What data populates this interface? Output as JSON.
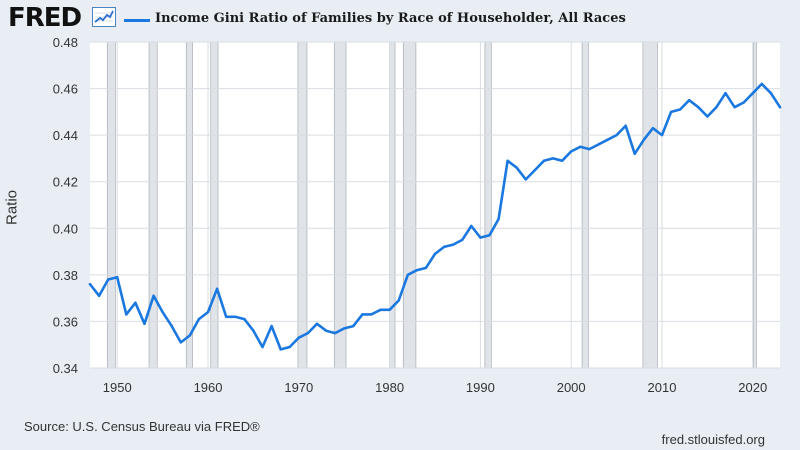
{
  "header": {
    "logo_text": "FRED",
    "logo_icon": "chart-line-icon",
    "title": "Income Gini Ratio of Families by Race of Householder, All Races"
  },
  "footer": {
    "source": "Source: U.S. Census Bureau via FRED®",
    "site": "fred.stlouisfed.org"
  },
  "colors": {
    "line": "#1a78e0",
    "plot_bg": "#ffffff",
    "page_bg": "#e9eef5",
    "recession": "#e0e3e7",
    "recession_stroke": "#9ca4ad",
    "grid": "#d9dde3"
  },
  "chart_data": {
    "type": "line",
    "title": "Income Gini Ratio of Families by Race of Householder, All Races",
    "xlabel": "",
    "ylabel": "Ratio",
    "xlim": [
      1947,
      2023
    ],
    "ylim": [
      0.34,
      0.48
    ],
    "xticks": [
      1950,
      1960,
      1970,
      1980,
      1990,
      2000,
      2010,
      2020
    ],
    "yticks": [
      0.34,
      0.36,
      0.38,
      0.4,
      0.42,
      0.44,
      0.46,
      0.48
    ],
    "ytick_labels": [
      "0.34",
      "0.36",
      "0.38",
      "0.40",
      "0.42",
      "0.44",
      "0.46",
      "0.48"
    ],
    "grid": true,
    "legend": "top-left",
    "recessions": [
      [
        1948.9,
        1949.8
      ],
      [
        1953.5,
        1954.4
      ],
      [
        1957.6,
        1958.3
      ],
      [
        1960.3,
        1961.1
      ],
      [
        1969.9,
        1970.9
      ],
      [
        1973.9,
        1975.2
      ],
      [
        1980.0,
        1980.6
      ],
      [
        1981.5,
        1982.9
      ],
      [
        1990.5,
        1991.2
      ],
      [
        2001.2,
        2001.9
      ],
      [
        2007.9,
        2009.5
      ],
      [
        2020.1,
        2020.4
      ]
    ],
    "series": [
      {
        "name": "Income Gini Ratio of Families by Race of Householder, All Races",
        "x": [
          1947,
          1948,
          1949,
          1950,
          1951,
          1952,
          1953,
          1954,
          1955,
          1956,
          1957,
          1958,
          1959,
          1960,
          1961,
          1962,
          1963,
          1964,
          1965,
          1966,
          1967,
          1968,
          1969,
          1970,
          1971,
          1972,
          1973,
          1974,
          1975,
          1976,
          1977,
          1978,
          1979,
          1980,
          1981,
          1982,
          1983,
          1984,
          1985,
          1986,
          1987,
          1988,
          1989,
          1990,
          1991,
          1992,
          1993,
          1994,
          1995,
          1996,
          1997,
          1998,
          1999,
          2000,
          2001,
          2002,
          2003,
          2004,
          2005,
          2006,
          2007,
          2008,
          2009,
          2010,
          2011,
          2012,
          2013,
          2014,
          2015,
          2016,
          2017,
          2018,
          2019,
          2020,
          2021,
          2022,
          2023
        ],
        "y": [
          0.376,
          0.371,
          0.378,
          0.379,
          0.363,
          0.368,
          0.359,
          0.371,
          0.364,
          0.358,
          0.351,
          0.354,
          0.361,
          0.364,
          0.374,
          0.362,
          0.362,
          0.361,
          0.356,
          0.349,
          0.358,
          0.348,
          0.349,
          0.353,
          0.355,
          0.359,
          0.356,
          0.355,
          0.357,
          0.358,
          0.363,
          0.363,
          0.365,
          0.365,
          0.369,
          0.38,
          0.382,
          0.383,
          0.389,
          0.392,
          0.393,
          0.395,
          0.401,
          0.396,
          0.397,
          0.404,
          0.429,
          0.426,
          0.421,
          0.425,
          0.429,
          0.43,
          0.429,
          0.433,
          0.435,
          0.434,
          0.436,
          0.438,
          0.44,
          0.444,
          0.432,
          0.438,
          0.443,
          0.44,
          0.45,
          0.451,
          0.455,
          0.452,
          0.448,
          0.452,
          0.458,
          0.452,
          0.454,
          0.458,
          0.462,
          0.458,
          0.452
        ]
      }
    ]
  }
}
